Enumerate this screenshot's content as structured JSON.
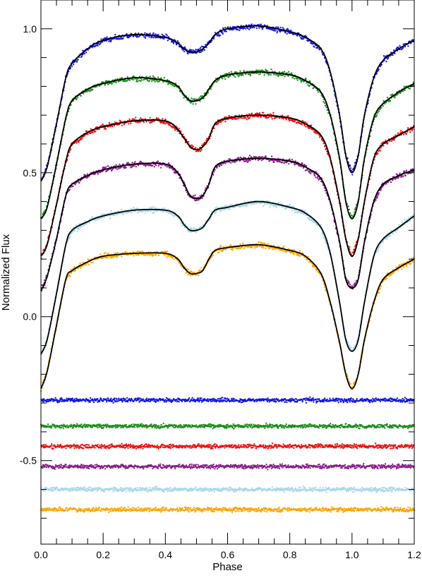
{
  "chart_data": {
    "type": "scatter",
    "title": "",
    "xlabel": "Phase",
    "ylabel": "Normalized Flux",
    "xlim": [
      0.0,
      1.2
    ],
    "ylim": [
      -0.79,
      1.1
    ],
    "x_ticks": [
      "0.0",
      "0.2",
      "0.4",
      "0.6",
      "0.8",
      "1.0",
      "1.2"
    ],
    "x_tick_values": [
      0.0,
      0.2,
      0.4,
      0.6,
      0.8,
      1.0,
      1.2
    ],
    "y_ticks": [
      "1.0",
      "0.5",
      "0.0",
      "-0.5"
    ],
    "y_tick_values": [
      1.0,
      0.5,
      0.0,
      -0.5
    ],
    "grid": false,
    "legend": "none",
    "model_color": "#000000",
    "curve_phase": [
      0.0,
      0.02,
      0.05,
      0.08,
      0.1,
      0.15,
      0.2,
      0.3,
      0.4,
      0.44,
      0.46,
      0.48,
      0.5,
      0.52,
      0.54,
      0.56,
      0.6,
      0.7,
      0.8,
      0.85,
      0.9,
      0.93,
      0.96,
      0.98,
      1.0,
      1.02,
      1.04,
      1.07,
      1.1,
      1.15,
      1.2
    ],
    "series": [
      {
        "color": "#1414e0",
        "points": "data",
        "model_flux": [
          0.47,
          0.52,
          0.67,
          0.83,
          0.88,
          0.93,
          0.96,
          0.98,
          0.97,
          0.95,
          0.93,
          0.92,
          0.92,
          0.93,
          0.95,
          0.98,
          1.0,
          1.01,
          0.99,
          0.97,
          0.93,
          0.85,
          0.7,
          0.56,
          0.5,
          0.56,
          0.7,
          0.83,
          0.89,
          0.93,
          0.96
        ],
        "residual_level": -0.29
      },
      {
        "color": "#1a8c1a",
        "points": "data",
        "model_flux": [
          0.34,
          0.38,
          0.53,
          0.69,
          0.75,
          0.79,
          0.81,
          0.83,
          0.82,
          0.8,
          0.77,
          0.75,
          0.75,
          0.76,
          0.79,
          0.82,
          0.84,
          0.85,
          0.84,
          0.82,
          0.78,
          0.7,
          0.55,
          0.4,
          0.34,
          0.4,
          0.55,
          0.69,
          0.74,
          0.78,
          0.81
        ],
        "residual_level": -0.38
      },
      {
        "color": "#ee1010",
        "points": "data",
        "model_flux": [
          0.21,
          0.25,
          0.39,
          0.54,
          0.6,
          0.64,
          0.66,
          0.68,
          0.68,
          0.65,
          0.62,
          0.59,
          0.58,
          0.59,
          0.62,
          0.67,
          0.69,
          0.7,
          0.69,
          0.67,
          0.63,
          0.55,
          0.4,
          0.27,
          0.21,
          0.27,
          0.4,
          0.55,
          0.6,
          0.63,
          0.66
        ],
        "residual_level": -0.45
      },
      {
        "color": "#8b1a8b",
        "points": "data",
        "model_flux": [
          0.09,
          0.14,
          0.27,
          0.42,
          0.46,
          0.49,
          0.51,
          0.53,
          0.53,
          0.5,
          0.46,
          0.42,
          0.41,
          0.42,
          0.46,
          0.52,
          0.54,
          0.55,
          0.54,
          0.52,
          0.48,
          0.4,
          0.26,
          0.13,
          0.1,
          0.13,
          0.26,
          0.4,
          0.46,
          0.49,
          0.51
        ],
        "residual_level": -0.52
      },
      {
        "color": "#a8d8e6",
        "points": "data",
        "model_flux": [
          -0.13,
          -0.08,
          0.08,
          0.25,
          0.3,
          0.33,
          0.35,
          0.37,
          0.37,
          0.35,
          0.32,
          0.3,
          0.3,
          0.31,
          0.34,
          0.37,
          0.38,
          0.4,
          0.38,
          0.36,
          0.31,
          0.22,
          0.05,
          -0.08,
          -0.12,
          -0.08,
          0.05,
          0.21,
          0.27,
          0.31,
          0.35
        ],
        "residual_level": -0.6
      },
      {
        "color": "#ffa500",
        "points": "data",
        "model_flux": [
          -0.25,
          -0.19,
          -0.03,
          0.13,
          0.16,
          0.19,
          0.21,
          0.22,
          0.22,
          0.2,
          0.17,
          0.15,
          0.15,
          0.16,
          0.2,
          0.23,
          0.24,
          0.25,
          0.23,
          0.21,
          0.15,
          0.05,
          -0.09,
          -0.2,
          -0.25,
          -0.2,
          -0.08,
          0.05,
          0.13,
          0.17,
          0.2
        ],
        "residual_level": -0.67
      }
    ]
  }
}
